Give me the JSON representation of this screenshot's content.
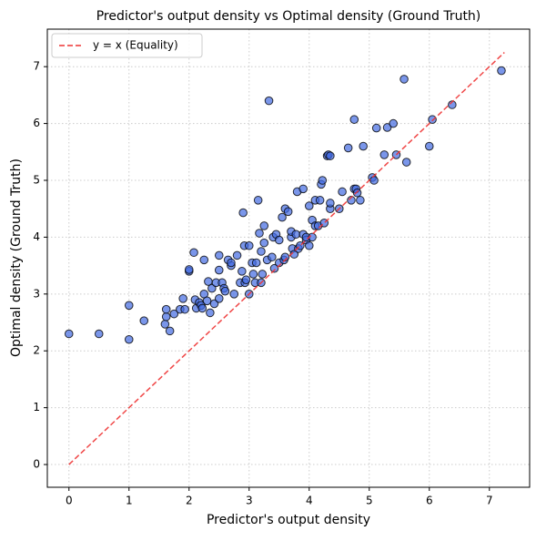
{
  "chart_data": {
    "type": "scatter",
    "title": "Predictor's output density vs Optimal density (Ground Truth)",
    "xlabel": "Predictor's output density",
    "ylabel": "Optimal density (Ground Truth)",
    "xlim": [
      -0.36,
      7.67
    ],
    "ylim": [
      -0.4,
      7.66
    ],
    "xticks": [
      0,
      1,
      2,
      3,
      4,
      5,
      6,
      7
    ],
    "yticks": [
      0,
      1,
      2,
      3,
      4,
      5,
      6,
      7
    ],
    "grid": true,
    "legend": "upper left",
    "series": [
      {
        "color": "#4169e1",
        "x": [
          0,
          0.5,
          1,
          1,
          1.25,
          1.6,
          1.62,
          1.62,
          1.68,
          1.75,
          1.85,
          1.9,
          1.93,
          2.0,
          2.0,
          2.08,
          2.1,
          2.12,
          2.17,
          2.2,
          2.22,
          2.25,
          2.25,
          2.3,
          2.32,
          2.35,
          2.38,
          2.42,
          2.45,
          2.5,
          2.5,
          2.5,
          2.55,
          2.58,
          2.6,
          2.65,
          2.7,
          2.75,
          2.8,
          2.85,
          2.88,
          2.9,
          2.92,
          2.93,
          2.95,
          3.0,
          3.0,
          3.05,
          3.07,
          3.1,
          3.12,
          3.15,
          3.17,
          3.2,
          3.2,
          3.22,
          3.25,
          3.25,
          3.3,
          3.33,
          3.38,
          3.4,
          3.42,
          3.45,
          3.5,
          3.5,
          3.55,
          3.58,
          3.6,
          3.65,
          3.7,
          3.7,
          3.72,
          3.75,
          3.78,
          3.8,
          3.82,
          3.85,
          3.9,
          3.9,
          3.95,
          4.0,
          4.0,
          4.05,
          4.1,
          4.1,
          4.15,
          4.18,
          4.2,
          4.22,
          4.25,
          4.3,
          4.32,
          4.35,
          4.35,
          4.5,
          4.55,
          4.65,
          4.7,
          4.75,
          4.75,
          4.78,
          4.8,
          4.85,
          4.9,
          5.05,
          5.08,
          5.12,
          5.25,
          5.3,
          5.4,
          5.45,
          5.58,
          5.62,
          6.0,
          6.05,
          6.38,
          7.2,
          4.35,
          3.95,
          4.05,
          2.7,
          3.6
        ],
        "values": [
          2.3,
          2.3,
          2.2,
          2.8,
          2.53,
          2.47,
          2.6,
          2.73,
          2.35,
          2.65,
          2.73,
          2.92,
          2.73,
          3.4,
          3.43,
          3.73,
          2.9,
          2.75,
          2.85,
          2.8,
          2.75,
          3.0,
          3.6,
          2.88,
          3.22,
          2.67,
          3.1,
          2.83,
          3.2,
          3.42,
          3.68,
          2.92,
          3.2,
          3.1,
          3.05,
          3.6,
          3.5,
          3.0,
          3.68,
          3.2,
          3.4,
          4.43,
          3.85,
          3.2,
          3.25,
          3.85,
          3.0,
          3.55,
          3.35,
          3.2,
          3.55,
          4.65,
          4.07,
          3.2,
          3.75,
          3.35,
          3.9,
          4.2,
          3.6,
          6.4,
          3.65,
          4.0,
          3.45,
          4.05,
          3.55,
          3.95,
          4.35,
          3.6,
          4.5,
          4.45,
          4.0,
          4.1,
          3.8,
          3.7,
          4.05,
          4.8,
          3.8,
          3.85,
          4.85,
          4.05,
          3.95,
          3.85,
          4.55,
          4.3,
          4.2,
          4.65,
          4.2,
          4.65,
          4.93,
          5.0,
          4.25,
          5.43,
          5.45,
          4.5,
          4.6,
          4.5,
          4.8,
          5.57,
          4.65,
          6.07,
          4.85,
          4.85,
          4.78,
          4.65,
          5.6,
          5.05,
          5.0,
          5.92,
          5.45,
          5.93,
          6.0,
          5.45,
          6.78,
          5.32,
          5.6,
          6.07,
          6.33,
          6.93,
          5.43,
          4.0,
          4.0,
          3.55,
          3.65
        ]
      }
    ],
    "reference_line": {
      "name": "y = x (Equality)",
      "color": "#ee3333",
      "x": [
        0,
        7.25
      ],
      "values": [
        0,
        7.25
      ]
    }
  }
}
